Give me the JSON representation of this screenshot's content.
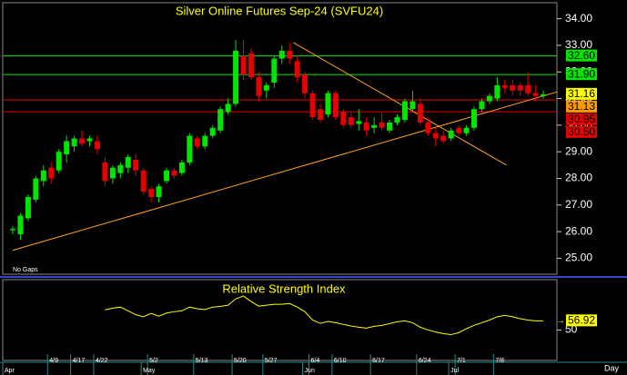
{
  "chart_data": [
    {
      "type": "candlestick",
      "title": "Silver Online Futures Sep-24 (SVFU24)",
      "note": "No Gaps",
      "x_unit": "Day",
      "categories": [
        null,
        null,
        null,
        null,
        null,
        "4/9",
        null,
        null,
        "4/17",
        null,
        null,
        "4/22",
        null,
        null,
        null,
        null,
        null,
        null,
        "5/2",
        null,
        null,
        null,
        null,
        null,
        "5/13",
        null,
        null,
        null,
        null,
        "5/20",
        null,
        null,
        null,
        "5/27",
        null,
        null,
        null,
        null,
        null,
        "6/4",
        null,
        null,
        "6/10",
        null,
        null,
        null,
        null,
        "6/17",
        null,
        null,
        null,
        null,
        null,
        "6/24",
        null,
        null,
        null,
        null,
        "7/1",
        null,
        null,
        null,
        null,
        "7/8",
        null,
        null,
        null,
        null,
        null,
        null
      ],
      "months": [
        "Apr",
        null,
        null,
        null,
        null,
        null,
        null,
        null,
        null,
        null,
        null,
        null,
        null,
        null,
        null,
        null,
        null,
        null,
        "May",
        null,
        null,
        null,
        null,
        null,
        null,
        null,
        null,
        null,
        null,
        null,
        null,
        null,
        null,
        null,
        null,
        null,
        null,
        null,
        null,
        "Jun",
        null,
        null,
        null,
        null,
        null,
        null,
        null,
        null,
        null,
        null,
        null,
        null,
        null,
        null,
        null,
        null,
        null,
        null,
        "Jul",
        null,
        null,
        null,
        null,
        null,
        null,
        null,
        null,
        null,
        null,
        null
      ],
      "open": [
        26.05,
        25.9,
        26.5,
        27.2,
        27.9,
        28.4,
        28.3,
        28.9,
        29.2,
        29.5,
        29.4,
        29.4,
        28.6,
        28.0,
        28.2,
        28.4,
        28.7,
        28.3,
        27.6,
        27.3,
        27.9,
        28.3,
        28.2,
        28.6,
        29.5,
        29.2,
        29.6,
        29.8,
        30.5,
        30.8,
        32.6,
        32.7,
        31.8,
        31.3,
        31.6,
        32.5,
        32.8,
        32.4,
        31.9,
        31.2,
        30.6,
        30.4,
        31.2,
        30.5,
        30.3,
        30.05,
        30.1,
        29.9,
        30.1,
        29.8,
        30.1,
        30.2,
        30.6,
        30.8,
        30.1,
        29.7,
        29.6,
        29.5,
        29.9,
        29.7,
        29.9,
        30.6,
        30.9,
        31.0,
        31.5,
        31.5,
        31.5,
        31.5,
        31.2,
        31.1
      ],
      "high": [
        26.2,
        26.7,
        27.4,
        28.1,
        28.5,
        28.6,
        29.1,
        29.6,
        29.6,
        29.8,
        29.6,
        29.6,
        28.8,
        28.5,
        28.6,
        28.9,
        28.9,
        28.4,
        27.7,
        27.8,
        28.4,
        28.4,
        28.7,
        29.7,
        29.6,
        29.7,
        30.0,
        30.7,
        31.0,
        33.2,
        33.2,
        32.9,
        32.0,
        31.6,
        32.6,
        33.0,
        33.1,
        32.6,
        32.0,
        31.3,
        30.8,
        31.3,
        31.3,
        30.6,
        30.5,
        30.6,
        30.3,
        30.3,
        30.5,
        30.2,
        30.4,
        31.0,
        31.3,
        31.0,
        30.3,
        29.9,
        29.8,
        29.9,
        30.0,
        30.0,
        30.7,
        31.0,
        31.2,
        31.8,
        31.7,
        31.7,
        31.6,
        32.0,
        31.5,
        31.3
      ],
      "low": [
        25.9,
        25.7,
        26.4,
        27.1,
        27.7,
        27.8,
        28.2,
        28.6,
        29.0,
        29.2,
        29.2,
        28.9,
        27.7,
        27.8,
        28.0,
        28.2,
        28.1,
        27.4,
        27.1,
        27.1,
        27.8,
        28.0,
        28.1,
        28.5,
        29.1,
        29.1,
        29.5,
        29.7,
        30.4,
        30.7,
        31.7,
        31.7,
        30.9,
        31.0,
        31.4,
        32.3,
        32.3,
        31.6,
        31.0,
        30.2,
        30.1,
        30.3,
        30.2,
        29.9,
        29.9,
        29.8,
        29.6,
        29.7,
        29.8,
        29.7,
        30.0,
        30.1,
        30.5,
        30.0,
        29.6,
        29.2,
        29.3,
        29.4,
        29.6,
        29.6,
        29.8,
        30.5,
        30.8,
        30.9,
        31.2,
        31.1,
        31.1,
        31.1,
        30.9,
        31.0
      ],
      "close": [
        26.1,
        26.6,
        27.3,
        28.0,
        28.3,
        28.0,
        29.0,
        29.4,
        29.5,
        29.3,
        29.5,
        29.1,
        27.9,
        28.4,
        28.5,
        28.8,
        28.3,
        27.5,
        27.3,
        27.7,
        28.3,
        28.1,
        28.6,
        29.6,
        29.2,
        29.6,
        29.9,
        30.6,
        30.8,
        32.8,
        31.9,
        31.8,
        31.1,
        31.5,
        32.5,
        32.8,
        32.5,
        31.8,
        31.2,
        30.3,
        30.2,
        31.2,
        30.3,
        30.0,
        30.0,
        30.15,
        29.8,
        30.0,
        29.9,
        30.1,
        30.3,
        30.9,
        30.9,
        30.1,
        29.7,
        29.5,
        29.4,
        29.8,
        29.7,
        29.9,
        30.6,
        30.9,
        31.1,
        31.5,
        31.4,
        31.3,
        31.3,
        31.2,
        31.1,
        31.16
      ],
      "up_color": "#00e600",
      "down_color": "#e60000",
      "ylim": [
        24.4,
        34.6
      ],
      "yticks": [
        {
          "value": 25,
          "label": "25.00"
        },
        {
          "value": 26,
          "label": "26.00"
        },
        {
          "value": 27,
          "label": "27.00"
        },
        {
          "value": 28,
          "label": "28.00"
        },
        {
          "value": 29,
          "label": "29.00"
        },
        {
          "value": 30,
          "label": "30.00"
        },
        {
          "value": 31,
          "label": "31.00"
        },
        {
          "value": 32,
          "label": "32.00"
        },
        {
          "value": 33,
          "label": "33.00"
        },
        {
          "value": 34,
          "label": "34.00"
        }
      ],
      "levels": [
        {
          "value": 32.6,
          "label": "32.60",
          "color": "#00e600",
          "line": true
        },
        {
          "value": 31.9,
          "label": "31.90",
          "color": "#00e600",
          "line": true
        },
        {
          "value": 31.16,
          "label": "31.16",
          "color": "#ffff00",
          "line": false
        },
        {
          "value": 31.13,
          "label": "31.13",
          "color": "#ff9900",
          "line": false
        },
        {
          "value": 30.95,
          "label": "30.95",
          "color": "#e60000",
          "line": true
        },
        {
          "value": 30.5,
          "label": "30.50",
          "color": "#e60000",
          "line": true
        }
      ],
      "trendlines": [
        {
          "color": "#ffa020",
          "x": [
            0,
            70.8
          ],
          "y": [
            25.3,
            31.25
          ]
        },
        {
          "color": "#ffa020",
          "x": [
            36.5,
            64.2
          ],
          "y": [
            33.1,
            28.5
          ]
        }
      ]
    },
    {
      "type": "line",
      "title": "Relative Strength Index",
      "color": "#ffff00",
      "values": [
        null,
        null,
        null,
        null,
        null,
        null,
        null,
        null,
        null,
        null,
        null,
        null,
        65.2,
        66.5,
        67.3,
        64.5,
        61.5,
        60.0,
        62.5,
        60.4,
        62.8,
        63.8,
        64.5,
        67.3,
        66.0,
        65.5,
        67.3,
        67.8,
        68.7,
        73.5,
        75.6,
        71.5,
        68.0,
        68.7,
        69.4,
        69.4,
        70.0,
        67.3,
        63.8,
        57.5,
        55.0,
        56.5,
        55.5,
        54.2,
        53.0,
        52.1,
        51.4,
        52.8,
        53.5,
        54.8,
        56.2,
        56.9,
        55.5,
        52.1,
        50.0,
        48.5,
        47.2,
        46.5,
        48.0,
        51.0,
        53.5,
        55.5,
        57.5,
        60.0,
        61.0,
        60.0,
        58.5,
        57.5,
        56.9,
        56.92
      ],
      "last_value": 56.92,
      "last_label": "56.92",
      "ylim": [
        27,
        88
      ],
      "yticks": [
        50
      ]
    }
  ]
}
